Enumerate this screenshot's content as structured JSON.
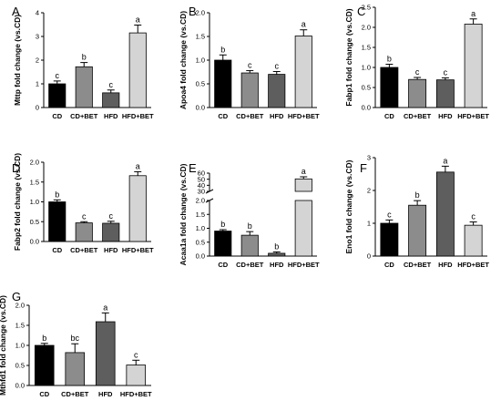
{
  "chart_data": [
    {
      "type": "bar",
      "panel": "A",
      "ylabel": "Mttp fold change (vs.CD)",
      "categories": [
        "CD",
        "CD+BET",
        "HFD",
        "HFD+BET"
      ],
      "values": [
        1.0,
        1.72,
        0.62,
        3.15
      ],
      "errors": [
        0.12,
        0.18,
        0.12,
        0.33
      ],
      "letters": [
        "c",
        "b",
        "c",
        "a"
      ],
      "colors": [
        "#000000",
        "#8c8c8c",
        "#5e5e5e",
        "#d4d4d4"
      ],
      "ylim": [
        0,
        4
      ],
      "yticks": [
        0,
        1,
        2,
        3,
        4
      ],
      "ytick_labels": [
        "0",
        "1",
        "2",
        "3",
        "4"
      ]
    },
    {
      "type": "bar",
      "panel": "B",
      "ylabel": "Apoa4 fold change (vs.CD)",
      "categories": [
        "CD",
        "CD+BET",
        "HFD",
        "HFD+BET"
      ],
      "values": [
        1.0,
        0.73,
        0.7,
        1.51
      ],
      "errors": [
        0.11,
        0.05,
        0.06,
        0.13
      ],
      "letters": [
        "b",
        "c",
        "c",
        "a"
      ],
      "colors": [
        "#000000",
        "#8c8c8c",
        "#5e5e5e",
        "#d4d4d4"
      ],
      "ylim": [
        0,
        2.0
      ],
      "yticks": [
        0,
        0.5,
        1.0,
        1.5,
        2.0
      ],
      "ytick_labels": [
        "0.0",
        "0.5",
        "1.0",
        "1.5",
        "2.0"
      ]
    },
    {
      "type": "bar",
      "panel": "C",
      "ylabel": "Fabp1 fold change (vs.CD)",
      "categories": [
        "CD",
        "CD+BET",
        "HFD",
        "HFD+BET"
      ],
      "values": [
        1.0,
        0.7,
        0.69,
        2.08
      ],
      "errors": [
        0.08,
        0.05,
        0.05,
        0.13
      ],
      "letters": [
        "b",
        "c",
        "c",
        "a"
      ],
      "colors": [
        "#000000",
        "#8c8c8c",
        "#5e5e5e",
        "#d4d4d4"
      ],
      "ylim": [
        0,
        2.5
      ],
      "yticks": [
        0,
        0.5,
        1.0,
        1.5,
        2.0,
        2.5
      ],
      "ytick_labels": [
        "0.0",
        "0.5",
        "1.0",
        "1.5",
        "2.0",
        "2.5"
      ]
    },
    {
      "type": "bar",
      "panel": "D",
      "ylabel": "Fabp2 fold change (vs.CD)",
      "categories": [
        "CD",
        "CD+BET",
        "HFD",
        "HFD+BET"
      ],
      "values": [
        1.0,
        0.47,
        0.46,
        1.66
      ],
      "errors": [
        0.05,
        0.03,
        0.05,
        0.1
      ],
      "letters": [
        "b",
        "c",
        "c",
        "a"
      ],
      "colors": [
        "#000000",
        "#8c8c8c",
        "#5e5e5e",
        "#d4d4d4"
      ],
      "ylim": [
        0,
        2.0
      ],
      "yticks": [
        0,
        0.5,
        1.0,
        1.5,
        2.0
      ],
      "ytick_labels": [
        "0.0",
        "0.5",
        "1.0",
        "1.5",
        "2.0"
      ]
    },
    {
      "type": "bar",
      "panel": "E",
      "ylabel": "Acaa1a fold change (vs.CD)",
      "categories": [
        "CD",
        "CD+BET",
        "HFD",
        "HFD+BET"
      ],
      "values": [
        0.9,
        0.75,
        0.1,
        50.5
      ],
      "errors": [
        0.05,
        0.13,
        0.05,
        3.5
      ],
      "letters": [
        "b",
        "b",
        "b",
        "a"
      ],
      "colors": [
        "#000000",
        "#8c8c8c",
        "#5e5e5e",
        "#d4d4d4"
      ],
      "broken_axis": true,
      "ylim_lower": [
        0,
        2.0
      ],
      "yticks_lower": [
        0,
        0.5,
        1.0,
        1.5,
        2.0
      ],
      "ytick_labels_lower": [
        "0.0",
        "0.5",
        "1.0",
        "1.5",
        "2.0"
      ],
      "ylim_upper": [
        30,
        60
      ],
      "yticks_upper": [
        30,
        40,
        50,
        60
      ],
      "ytick_labels_upper": [
        "30",
        "40",
        "50",
        "60"
      ]
    },
    {
      "type": "bar",
      "panel": "F",
      "ylabel": "Eno1 fold change (vs.CD)",
      "categories": [
        "CD",
        "CD+BET",
        "HFD",
        "HFD+BET"
      ],
      "values": [
        1.0,
        1.55,
        2.56,
        0.94
      ],
      "errors": [
        0.1,
        0.14,
        0.18,
        0.1
      ],
      "letters": [
        "c",
        "b",
        "a",
        "c"
      ],
      "colors": [
        "#000000",
        "#8c8c8c",
        "#5e5e5e",
        "#d4d4d4"
      ],
      "ylim": [
        0,
        3
      ],
      "yticks": [
        0,
        1,
        2,
        3
      ],
      "ytick_labels": [
        "0",
        "1",
        "2",
        "3"
      ]
    },
    {
      "type": "bar",
      "panel": "G",
      "ylabel": "Mthfd1 fold change (vs.CD)",
      "categories": [
        "CD",
        "CD+BET",
        "HFD",
        "HFD+BET"
      ],
      "values": [
        1.0,
        0.82,
        1.59,
        0.51
      ],
      "errors": [
        0.05,
        0.22,
        0.22,
        0.12
      ],
      "letters": [
        "b",
        "bc",
        "a",
        "c"
      ],
      "colors": [
        "#000000",
        "#8c8c8c",
        "#5e5e5e",
        "#d4d4d4"
      ],
      "ylim": [
        0,
        2.0
      ],
      "yticks": [
        0,
        0.5,
        1.0,
        1.5,
        2.0
      ],
      "ytick_labels": [
        "0.0",
        "0.5",
        "1.0",
        "1.5",
        "2.0"
      ]
    }
  ]
}
